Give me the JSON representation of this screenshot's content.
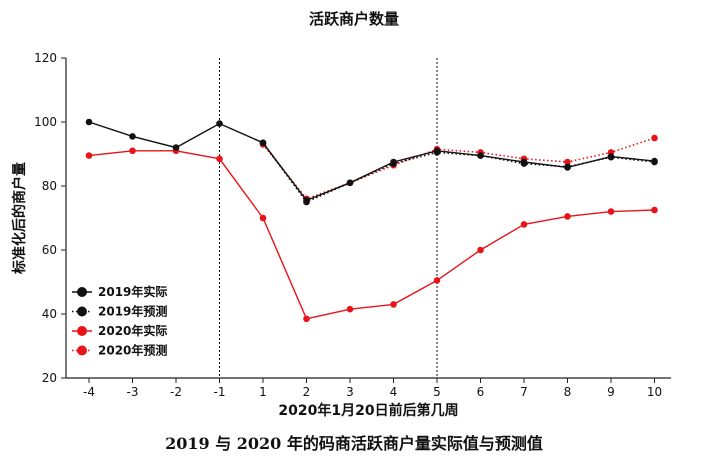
{
  "chart_data": {
    "type": "line",
    "title": "活跃商户数量",
    "xlabel": "2020年1月20日前后第几周",
    "ylabel": "标准化后的商户量",
    "categories": [
      "-4",
      "-3",
      "-2",
      "-1",
      "1",
      "2",
      "3",
      "4",
      "5",
      "6",
      "7",
      "8",
      "9",
      "10"
    ],
    "ylim": [
      20,
      120
    ],
    "yticks": [
      "20",
      "40",
      "60",
      "80",
      "100",
      "120"
    ],
    "vlines_at": [
      "-1",
      "5"
    ],
    "legend_position": "bottom-left",
    "series": [
      {
        "name": "2019年实际",
        "color": "#111111",
        "style": "solid",
        "values": [
          100,
          95.5,
          92,
          99.5,
          93.5,
          75.5,
          81,
          87.5,
          91,
          89.5,
          87.5,
          85.8,
          89.2,
          87.8
        ]
      },
      {
        "name": "2019年预测",
        "color": "#111111",
        "style": "dotted",
        "values": [
          null,
          null,
          null,
          null,
          93.5,
          75,
          81,
          87,
          90.5,
          89.5,
          87,
          86,
          89,
          87.5
        ]
      },
      {
        "name": "2020年实际",
        "color": "#e8141a",
        "style": "solid",
        "values": [
          89.5,
          91,
          91,
          88.5,
          70,
          38.5,
          41.5,
          43,
          50.5,
          60,
          68,
          70.5,
          72,
          72.5
        ]
      },
      {
        "name": "2020年预测",
        "color": "#e8141a",
        "style": "dotted",
        "values": [
          null,
          null,
          null,
          null,
          93,
          76,
          81,
          86.5,
          91.5,
          90.5,
          88.5,
          87.5,
          90.5,
          95
        ]
      }
    ]
  },
  "caption": "2019 与 2020 年的码商活跃商户量实际值与预测值"
}
